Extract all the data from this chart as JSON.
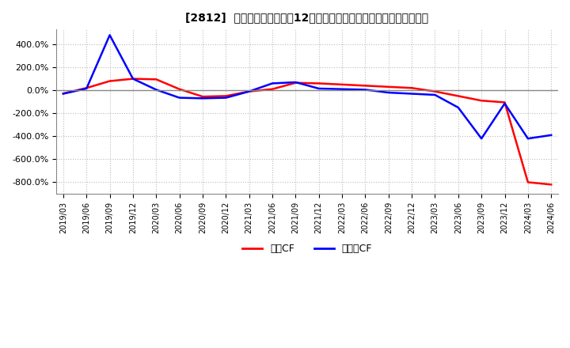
{
  "title": "[2812]  キャッシュフローの12か月移動合計の対前年同期増減率の推移",
  "ylim": [
    -900,
    530
  ],
  "yticks": [
    -800,
    -600,
    -400,
    -200,
    0,
    200,
    400
  ],
  "ytick_labels": [
    "-800.0%",
    "-600.0%",
    "-400.0%",
    "-200.0%",
    "0.0%",
    "200.0%",
    "400.0%"
  ],
  "legend_labels": [
    "営業CF",
    "フリーCF"
  ],
  "line_colors": [
    "#ff0000",
    "#0000ff"
  ],
  "bg_color": "#ffffff",
  "grid_color": "#bbbbbb",
  "dates": [
    "2019/03",
    "2019/06",
    "2019/09",
    "2019/12",
    "2020/03",
    "2020/06",
    "2020/09",
    "2020/12",
    "2021/03",
    "2021/06",
    "2021/09",
    "2021/12",
    "2022/03",
    "2022/06",
    "2022/09",
    "2022/12",
    "2023/03",
    "2023/06",
    "2023/09",
    "2023/12",
    "2024/03",
    "2024/06"
  ],
  "operating_cf": [
    -28,
    20,
    80,
    100,
    95,
    10,
    -55,
    -50,
    -10,
    10,
    65,
    60,
    50,
    40,
    30,
    20,
    -10,
    -50,
    -90,
    -105,
    -800,
    -820
  ],
  "free_cf": [
    -30,
    15,
    480,
    100,
    5,
    -65,
    -70,
    -65,
    -10,
    60,
    70,
    15,
    10,
    5,
    -20,
    -30,
    -40,
    -150,
    -420,
    -115,
    -420,
    -390
  ]
}
